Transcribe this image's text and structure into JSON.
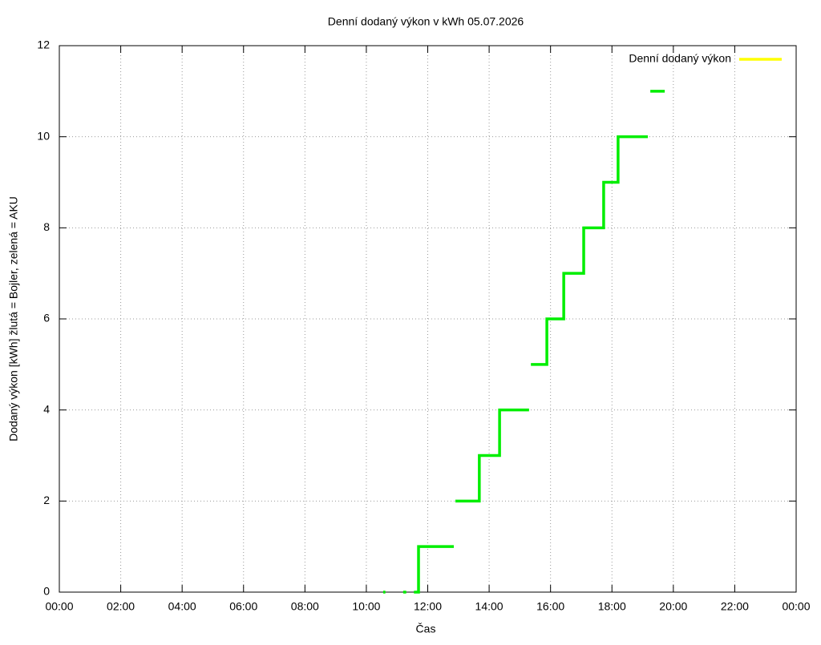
{
  "chart_data": {
    "type": "line",
    "title": "Denní dodaný výkon v kWh 05.07.2026",
    "x_label": "Čas",
    "y_label": "Dodaný výkon [kWh]  žlutá = Bojler, zelená = AKU",
    "x": [
      10.55,
      10.62,
      10.9,
      11.2,
      11.3,
      11.4,
      11.55,
      11.7,
      11.7,
      12.85,
      12.88,
      12.9,
      13.68,
      13.68,
      14.34,
      14.34,
      15.3,
      15.33,
      15.36,
      15.88,
      15.88,
      16.43,
      16.43,
      17.08,
      17.08,
      17.73,
      17.73,
      18.2,
      18.2,
      19.17,
      19.21,
      19.25,
      19.72
    ],
    "series": [
      {
        "name": "Denní dodaný výkon",
        "color": "#00ee00",
        "legend_color": "#ffff00",
        "values": [
          0,
          0,
          null,
          0,
          0,
          null,
          0,
          0,
          1,
          1,
          null,
          2,
          2,
          3,
          3,
          4,
          4,
          null,
          5,
          5,
          6,
          6,
          7,
          7,
          8,
          8,
          9,
          9,
          10,
          10,
          null,
          11,
          11
        ]
      }
    ],
    "xlim": [
      0,
      24
    ],
    "xticks": [
      {
        "value": 0,
        "label": "00:00"
      },
      {
        "value": 2,
        "label": "02:00"
      },
      {
        "value": 4,
        "label": "04:00"
      },
      {
        "value": 6,
        "label": "06:00"
      },
      {
        "value": 8,
        "label": "08:00"
      },
      {
        "value": 10,
        "label": "10:00"
      },
      {
        "value": 12,
        "label": "12:00"
      },
      {
        "value": 14,
        "label": "14:00"
      },
      {
        "value": 16,
        "label": "16:00"
      },
      {
        "value": 18,
        "label": "18:00"
      },
      {
        "value": 20,
        "label": "20:00"
      },
      {
        "value": 22,
        "label": "22:00"
      },
      {
        "value": 24,
        "label": "00:00"
      }
    ],
    "ylim": [
      0,
      12
    ],
    "yticks": [
      0,
      2,
      4,
      6,
      8,
      10,
      12
    ],
    "grid": true,
    "legend": "top-right"
  }
}
